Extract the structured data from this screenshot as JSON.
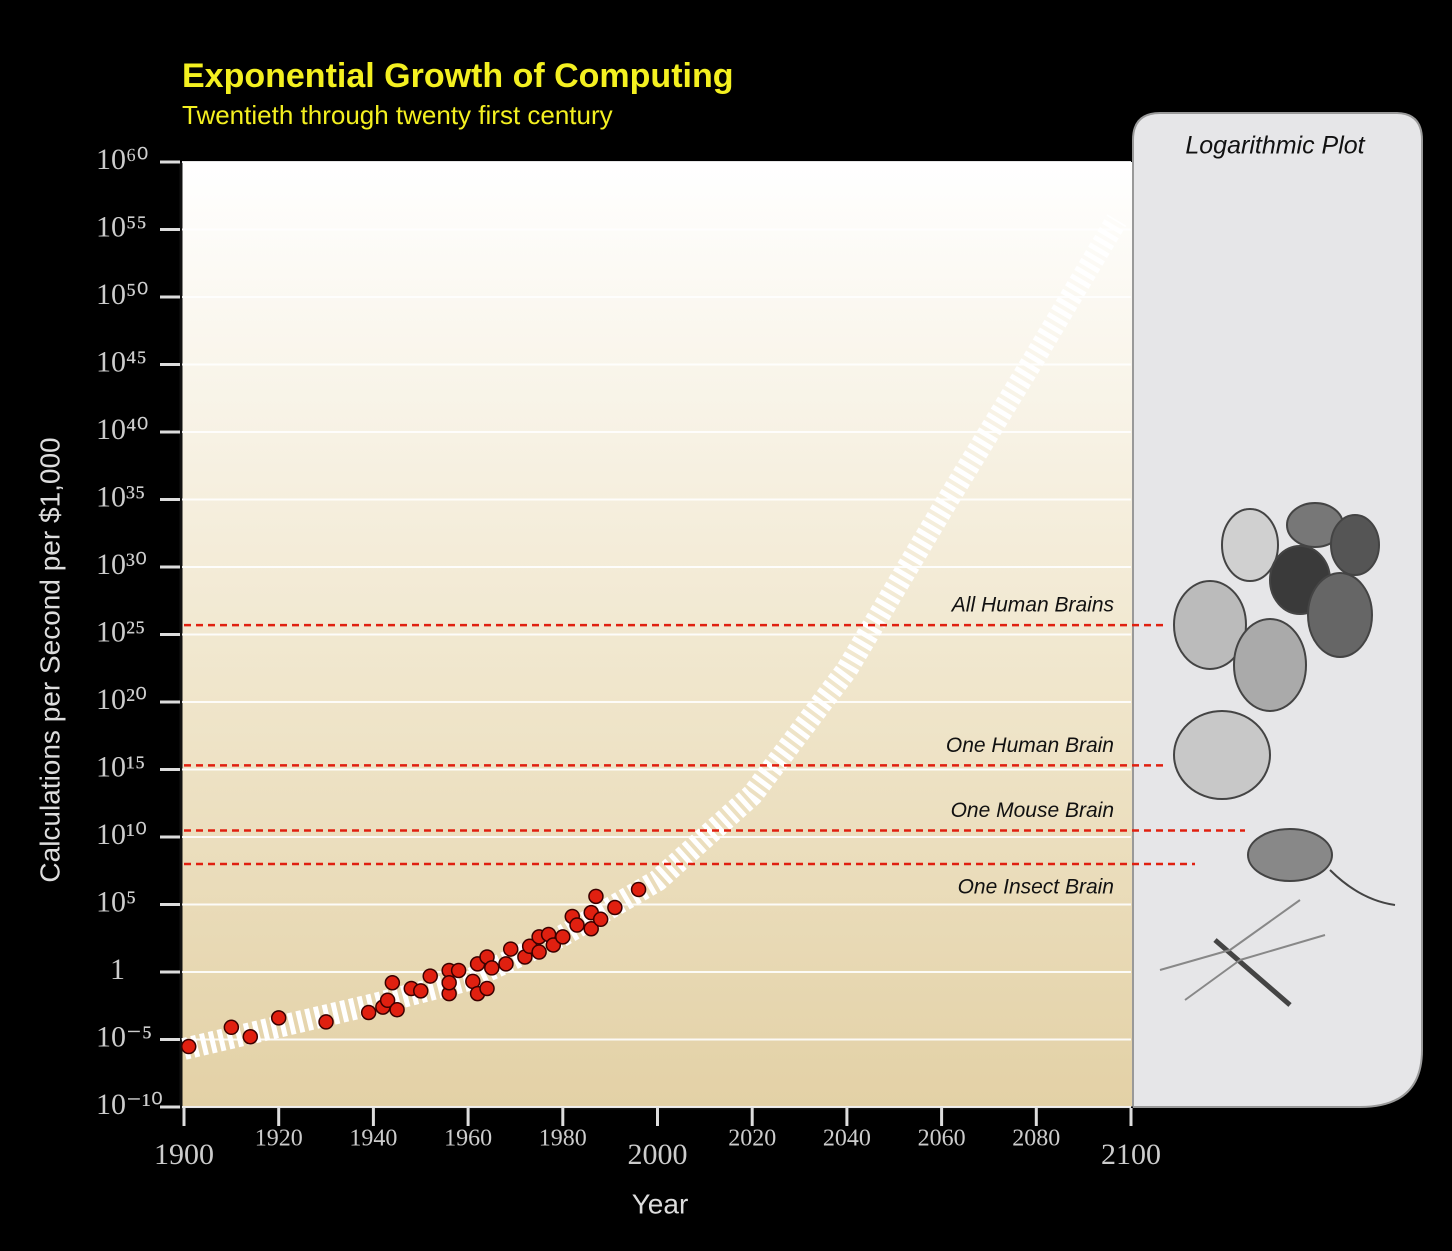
{
  "chart_data": {
    "type": "scatter",
    "title": "Exponential Growth of Computing",
    "subtitle": "Twentieth through twenty first century",
    "x_label": "Year",
    "y_label": "Calculations per Second per $1,000",
    "panel_label": "Logarithmic Plot",
    "y_scale": "log",
    "grid": true,
    "xlim": [
      1900,
      2100
    ],
    "xticks": [
      1900,
      1920,
      1940,
      1960,
      1980,
      2000,
      2020,
      2040,
      2060,
      2080,
      2100
    ],
    "ylim": [
      1e-10,
      1e+60
    ],
    "yticks": [
      {
        "value": 1e-10,
        "label": "10⁻¹⁰"
      },
      {
        "value": 1e-05,
        "label": "10⁻⁵"
      },
      1,
      {
        "value": 100000.0,
        "label": "10⁵"
      },
      {
        "value": 10000000000.0,
        "label": "10¹⁰"
      },
      {
        "value": 1000000000000000.0,
        "label": "10¹⁵"
      },
      {
        "value": 1e+20,
        "label": "10²⁰"
      },
      {
        "value": 1e+25,
        "label": "10²⁵"
      },
      {
        "value": 1e+30,
        "label": "10³⁰"
      },
      {
        "value": 1e+35,
        "label": "10³⁵"
      },
      {
        "value": 1e+40,
        "label": "10⁴⁰"
      },
      {
        "value": 1e+45,
        "label": "10⁴⁵"
      },
      {
        "value": 1e+50,
        "label": "10⁵⁰"
      },
      {
        "value": 1e+55,
        "label": "10⁵⁵"
      },
      {
        "value": 1e+60,
        "label": "10⁶⁰"
      }
    ],
    "color": "#e02010",
    "x": [
      1901,
      1910,
      1914,
      1920,
      1930,
      1939,
      1942,
      1943,
      1944,
      1945,
      1948,
      1950,
      1952,
      1956,
      1956,
      1956,
      1958,
      1961,
      1962,
      1962,
      1964,
      1964,
      1965,
      1968,
      1969,
      1972,
      1973,
      1975,
      1975,
      1977,
      1978,
      1980,
      1982,
      1983,
      1986,
      1986,
      1988,
      1987,
      1991,
      1996
    ],
    "values": [
      3e-06,
      8e-05,
      1.6e-05,
      0.0004,
      0.0002,
      0.001,
      0.0025,
      0.008,
      0.16,
      0.0016,
      0.06,
      0.04,
      0.5,
      1.3,
      0.025,
      0.16,
      1.3,
      0.2,
      0.025,
      4,
      0.06,
      13,
      2,
      4,
      50,
      13,
      80,
      30,
      400,
      600,
      100,
      400,
      13000,
      3000,
      1600,
      25000,
      8000,
      400000,
      60000,
      1300000
    ],
    "trend": {
      "color": "#ffffff",
      "x": [
        1900,
        1940,
        1960,
        1980,
        2000,
        2020,
        2040,
        2060,
        2080,
        2097
      ],
      "values": [
        2e-06,
        0.004,
        0.25,
        500,
        6000000.0,
        13000000000000.0,
        2.5e+22,
        1.6e+34,
        5e+45,
        5e+55
      ]
    },
    "reference_lines": [
      {
        "label": "All Human Brains",
        "value": 5e+25,
        "color": "#e02010"
      },
      {
        "label": "One Human Brain",
        "value": 2000000000000000.0,
        "color": "#e02010"
      },
      {
        "label": "One Mouse Brain",
        "value": 30000000000.0,
        "color": "#e02010"
      },
      {
        "label": "One Insect Brain",
        "value": 100000000.0,
        "color": "#e02010"
      }
    ]
  }
}
